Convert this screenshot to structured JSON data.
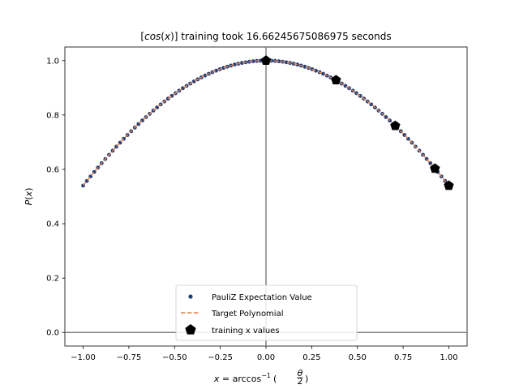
{
  "chart_data": {
    "type": "scatter",
    "title": "[cos(x)] training took 16.66245675086975 seconds",
    "title_parts": {
      "open": "[",
      "func": "cos",
      "arg_open": "(",
      "var": "x",
      "arg_close": ")]",
      "rest": " training took 16.66245675086975 seconds"
    },
    "xlabel": "x = arccos⁻¹(θ/2)",
    "xlabel_parts": {
      "var": "x",
      "eq": " = arccos",
      "sup": "−1",
      "frac_num": "θ",
      "frac_den": "2"
    },
    "ylabel": "P(x)",
    "ylabel_parts": {
      "func": "P",
      "open": "(",
      "var": "x",
      "close": ")"
    },
    "xlim": [
      -1.1,
      1.1
    ],
    "ylim": [
      -0.05,
      1.05
    ],
    "xticks": [
      -1.0,
      -0.75,
      -0.5,
      -0.25,
      0.0,
      0.25,
      0.5,
      0.75,
      1.0
    ],
    "xtick_labels": [
      "−1.00",
      "−0.75",
      "−0.50",
      "−0.25",
      "0.00",
      "0.25",
      "0.50",
      "0.75",
      "1.00"
    ],
    "yticks": [
      0.0,
      0.2,
      0.4,
      0.6,
      0.8,
      1.0
    ],
    "ytick_labels": [
      "0.0",
      "0.2",
      "0.4",
      "0.6",
      "0.8",
      "1.0"
    ],
    "reference_lines": {
      "horizontal_y": 0,
      "vertical_x": 0
    },
    "series": [
      {
        "name": "PauliZ Expectation Value",
        "kind": "scatter",
        "function": "cos",
        "x_start": -1.0,
        "x_end": 1.0,
        "n_points": 100,
        "color": "#1f3d7a"
      },
      {
        "name": "Target Polynomial",
        "kind": "dashed-line",
        "function": "cos",
        "x_start": -1.0,
        "x_end": 1.0,
        "color": "#dd8452"
      },
      {
        "name": "training x values",
        "kind": "pentagon-markers",
        "x": [
          0.0,
          0.383,
          0.707,
          0.924,
          1.0
        ],
        "y": [
          1.0,
          0.928,
          0.76,
          0.603,
          0.54
        ],
        "color": "#000000"
      }
    ],
    "legend_position": "lower center"
  }
}
